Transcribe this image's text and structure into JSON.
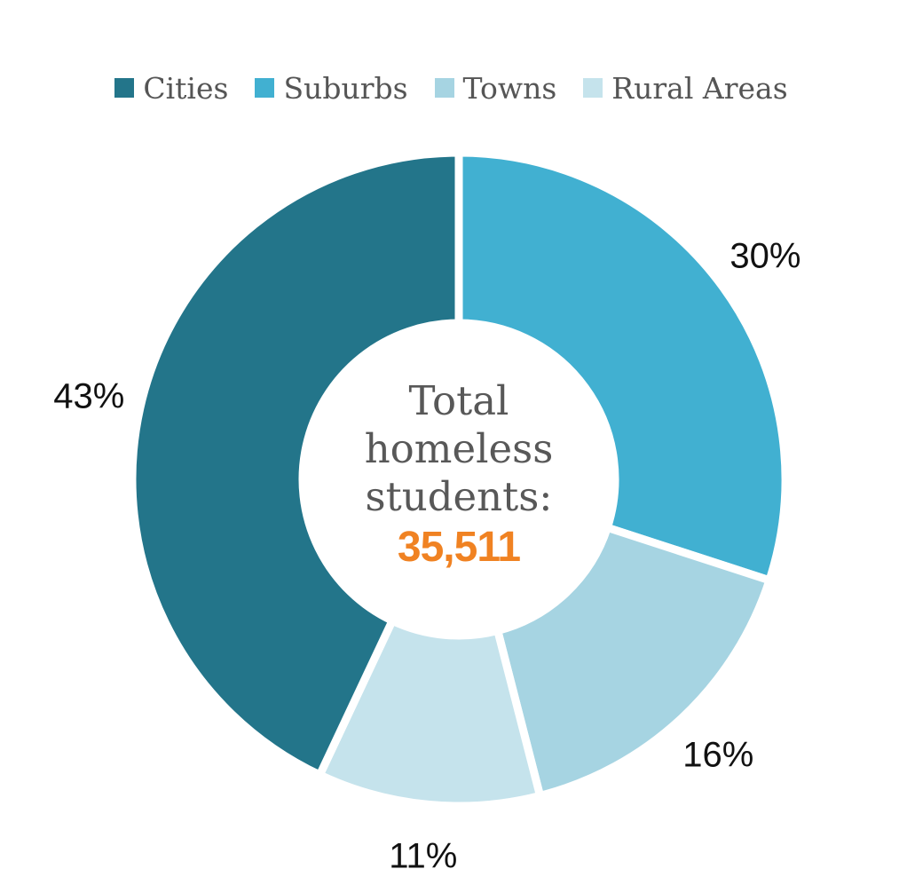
{
  "chart_data": {
    "type": "pie",
    "donut": true,
    "categories": [
      "Cities",
      "Suburbs",
      "Towns",
      "Rural Areas"
    ],
    "values": [
      43,
      30,
      16,
      11
    ],
    "value_labels": [
      "43%",
      "30%",
      "16%",
      "11%"
    ],
    "colors": [
      "#23758a",
      "#41b0d1",
      "#a6d4e2",
      "#c5e3ec"
    ],
    "legend_position": "top-center",
    "start_angle": "12 o'clock, clockwise, beginning with Suburbs",
    "draw_order": [
      "Suburbs",
      "Towns",
      "Rural Areas",
      "Cities"
    ],
    "center_text": {
      "lines": [
        "Total",
        "homeless",
        "students:"
      ],
      "value": "35,511",
      "value_color": "#f08222"
    }
  }
}
